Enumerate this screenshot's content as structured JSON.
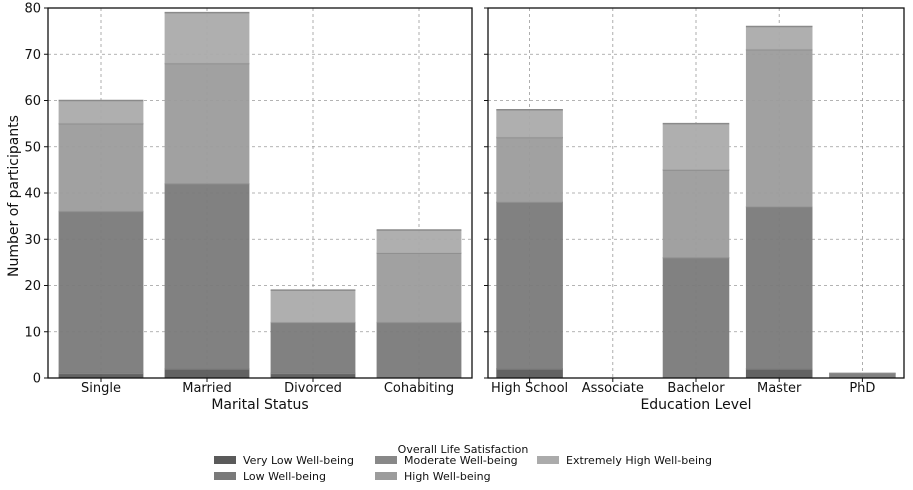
{
  "chart_data": {
    "type": "bar",
    "stacked": true,
    "ylabel": "Number of participants",
    "ylim": [
      0,
      80
    ],
    "yticks": [
      0,
      10,
      20,
      30,
      40,
      50,
      60,
      70,
      80
    ],
    "grid": true,
    "series_names": [
      "Very Low Well-being",
      "Low Well-being",
      "Moderate Well-being",
      "High Well-being",
      "Extremely High Well-being"
    ],
    "series_colors": [
      "#5a5a5a",
      "#7a7a7a",
      "#888888",
      "#9c9c9c",
      "#ababab"
    ],
    "legend": {
      "title": "Overall Life Satisfaction",
      "placement": "bottom-center",
      "columns": 3
    },
    "panels": [
      {
        "xlabel": "Marital Status",
        "categories": [
          "Single",
          "Married",
          "Divorced",
          "Cohabiting"
        ],
        "series": [
          {
            "name": "Very Low Well-being",
            "values": [
              1,
              2,
              1,
              0
            ]
          },
          {
            "name": "Low Well-being",
            "values": [
              35,
              40,
              11,
              12
            ]
          },
          {
            "name": "Moderate Well-being",
            "values": [
              0,
              0,
              0,
              0
            ]
          },
          {
            "name": "High Well-being",
            "values": [
              19,
              26,
              0,
              15
            ]
          },
          {
            "name": "Extremely High Well-being",
            "values": [
              5,
              11,
              7,
              5
            ]
          }
        ]
      },
      {
        "xlabel": "Education Level",
        "categories": [
          "High School",
          "Associate",
          "Bachelor",
          "Master",
          "PhD"
        ],
        "series": [
          {
            "name": "Very Low Well-being",
            "values": [
              2,
              0,
              0,
              2,
              0
            ]
          },
          {
            "name": "Low Well-being",
            "values": [
              36,
              0,
              26,
              35,
              1
            ]
          },
          {
            "name": "Moderate Well-being",
            "values": [
              0,
              0,
              0,
              0,
              0
            ]
          },
          {
            "name": "High Well-being",
            "values": [
              14,
              0,
              19,
              34,
              0
            ]
          },
          {
            "name": "Extremely High Well-being",
            "values": [
              6,
              0,
              10,
              5,
              0
            ]
          }
        ]
      }
    ]
  }
}
